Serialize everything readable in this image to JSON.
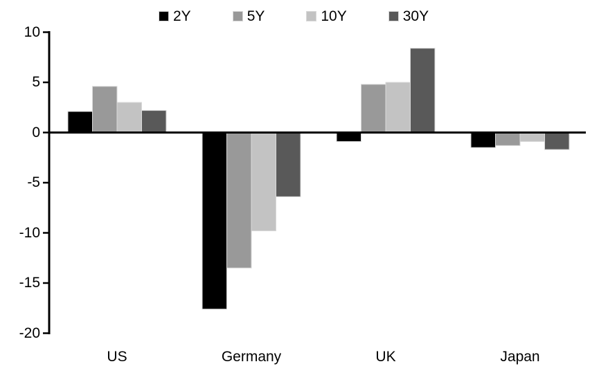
{
  "chart_data": {
    "type": "bar",
    "title": "",
    "xlabel": "",
    "ylabel": "",
    "categories": [
      "US",
      "Germany",
      "UK",
      "Japan"
    ],
    "series": [
      {
        "name": "2Y",
        "color": "#000000",
        "values": [
          2.1,
          -17.6,
          -0.9,
          -1.5
        ]
      },
      {
        "name": "5Y",
        "color": "#999999",
        "values": [
          4.6,
          -13.5,
          4.8,
          -1.3
        ]
      },
      {
        "name": "10Y",
        "color": "#c3c3c3",
        "values": [
          3.0,
          -9.8,
          5.0,
          -0.9
        ]
      },
      {
        "name": "30Y",
        "color": "#595959",
        "values": [
          2.2,
          -6.4,
          8.4,
          -1.7
        ]
      }
    ],
    "ylim": [
      -20,
      10
    ],
    "yticks": [
      10,
      5,
      0,
      -5,
      -10,
      -15,
      -20
    ],
    "grid": false,
    "legend_position": "top-center"
  },
  "colors": {
    "background": "#ffffff",
    "axis": "#000000",
    "text": "#000000",
    "bar_outline": "#d9d9d9"
  }
}
